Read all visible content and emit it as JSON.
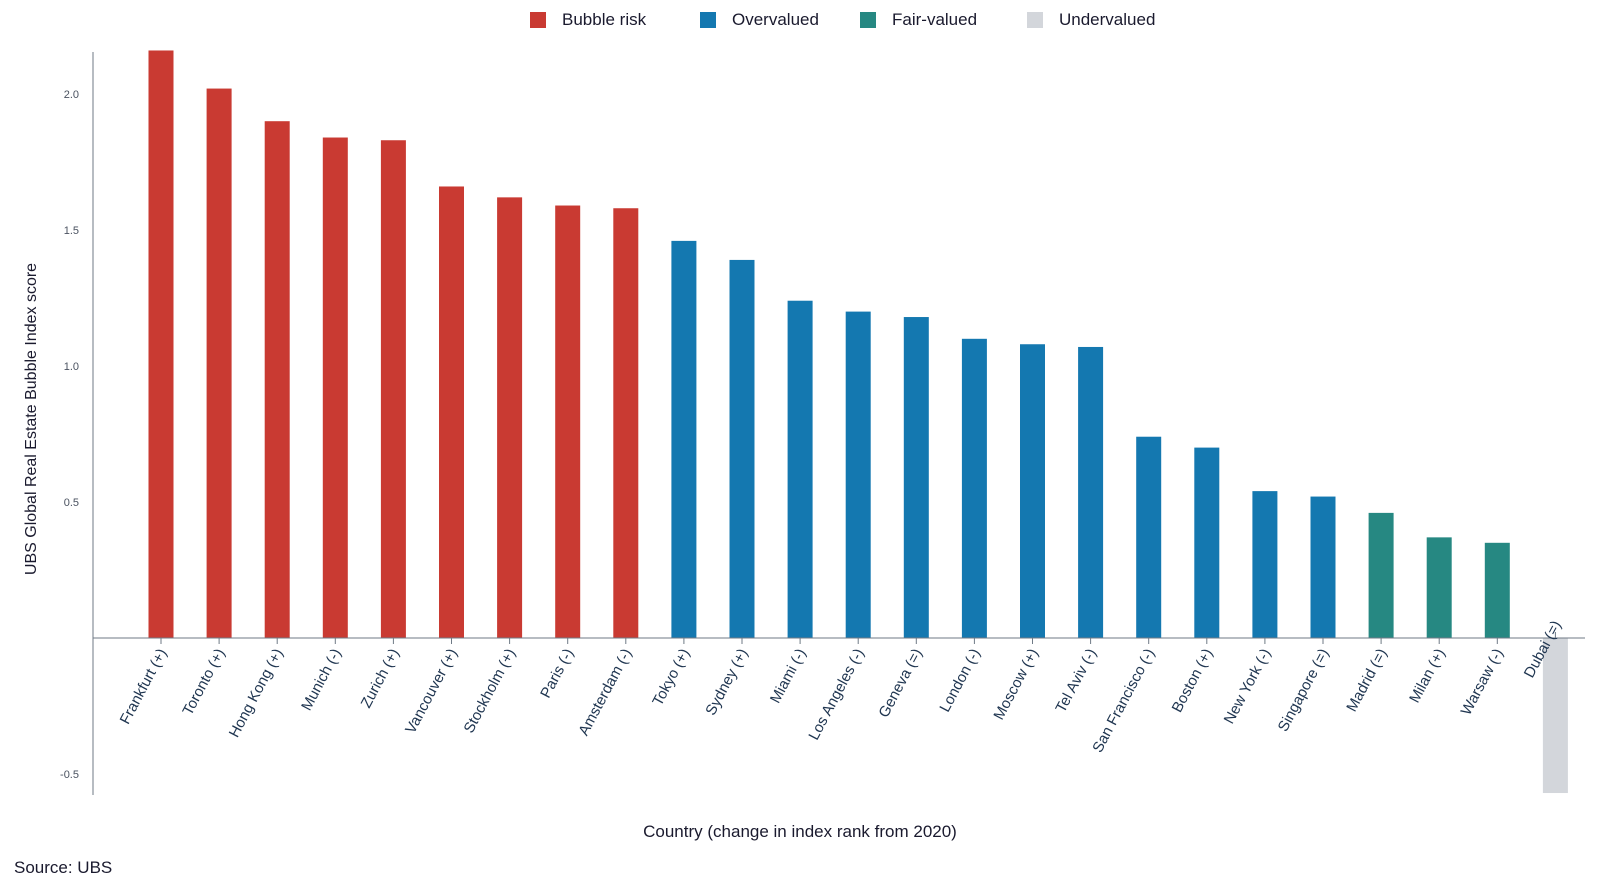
{
  "legend": [
    {
      "label": "Bubble risk",
      "color": "#c93a32"
    },
    {
      "label": "Overvalued",
      "color": "#1478b0"
    },
    {
      "label": "Fair-valued",
      "color": "#268882"
    },
    {
      "label": "Undervalued",
      "color": "#d3d6db"
    }
  ],
  "source": "Source: UBS",
  "chart_data": {
    "type": "bar",
    "xlabel": "Country (change in index rank from 2020)",
    "ylabel": "UBS Global Real Estate Bubble Index  score",
    "ylim": [
      -0.57,
      2.17
    ],
    "yticks": [
      {
        "value": 2.0,
        "label": "2.0"
      },
      {
        "value": 1.5,
        "label": "1.5"
      },
      {
        "value": 1.0,
        "label": "1.0"
      },
      {
        "value": 0.5,
        "label": "0.5"
      },
      {
        "value": -0.5,
        "label": "-0.5"
      }
    ],
    "grid": false,
    "legend_position": "top",
    "categories": [
      "Frankfurt (+)",
      "Toronto (+)",
      "Hong Kong (+)",
      "Munich (-)",
      "Zurich (+)",
      "Vancouver (+)",
      "Stockholm (+)",
      "Paris (-)",
      "Amsterdam (-)",
      "Tokyo (+)",
      "Sydney (+)",
      "Miami (-)",
      "Los Angeles (-)",
      "Geneva (=)",
      "London (-)",
      "Moscow (+)",
      "Tel Aviv (-)",
      "San Francisco (-)",
      "Boston (+)",
      "New York (-)",
      "Singapore (=)",
      "Madrid (=)",
      "Milan (+)",
      "Warsaw (-)",
      "Dubai (=)"
    ],
    "values": [
      2.16,
      2.02,
      1.9,
      1.84,
      1.83,
      1.66,
      1.62,
      1.59,
      1.58,
      1.46,
      1.39,
      1.24,
      1.2,
      1.18,
      1.1,
      1.08,
      1.07,
      0.74,
      0.7,
      0.54,
      0.52,
      0.46,
      0.37,
      0.35,
      -0.57
    ],
    "classes": [
      "Bubble risk",
      "Bubble risk",
      "Bubble risk",
      "Bubble risk",
      "Bubble risk",
      "Bubble risk",
      "Bubble risk",
      "Bubble risk",
      "Bubble risk",
      "Overvalued",
      "Overvalued",
      "Overvalued",
      "Overvalued",
      "Overvalued",
      "Overvalued",
      "Overvalued",
      "Overvalued",
      "Overvalued",
      "Overvalued",
      "Overvalued",
      "Overvalued",
      "Fair-valued",
      "Fair-valued",
      "Fair-valued",
      "Undervalued"
    ]
  }
}
